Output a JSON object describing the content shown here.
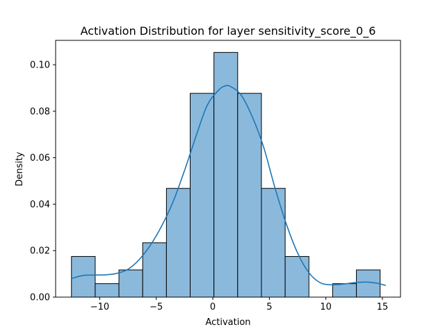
{
  "chart_data": {
    "type": "bar",
    "title": "Activation Distribution for layer sensitivity_score_0_6",
    "xlabel": "Activation",
    "ylabel": "Density",
    "xlim": [
      -13.9,
      16.6
    ],
    "ylim": [
      0,
      0.1105
    ],
    "xticks": [
      -10,
      -5,
      0,
      5,
      10,
      15
    ],
    "xtick_labels": [
      "−10",
      "−5",
      "0",
      "5",
      "10",
      "15"
    ],
    "yticks": [
      0.0,
      0.02,
      0.04,
      0.06,
      0.08,
      0.1
    ],
    "ytick_labels": [
      "0.00",
      "0.02",
      "0.04",
      "0.06",
      "0.08",
      "0.10"
    ],
    "grid": false,
    "bins": [
      {
        "x0": -12.5,
        "x1": -10.4,
        "density": 0.0175
      },
      {
        "x0": -10.4,
        "x1": -8.3,
        "density": 0.0058
      },
      {
        "x0": -8.3,
        "x1": -6.2,
        "density": 0.0117
      },
      {
        "x0": -6.2,
        "x1": -4.1,
        "density": 0.0234
      },
      {
        "x0": -4.1,
        "x1": -2.0,
        "density": 0.0468
      },
      {
        "x0": -2.0,
        "x1": 0.1,
        "density": 0.0877
      },
      {
        "x0": 0.1,
        "x1": 2.2,
        "density": 0.1053
      },
      {
        "x0": 2.2,
        "x1": 4.3,
        "density": 0.0877
      },
      {
        "x0": 4.3,
        "x1": 6.4,
        "density": 0.0468
      },
      {
        "x0": 6.4,
        "x1": 8.5,
        "density": 0.0175
      },
      {
        "x0": 8.5,
        "x1": 10.6,
        "density": 0.0
      },
      {
        "x0": 10.6,
        "x1": 12.7,
        "density": 0.0058
      },
      {
        "x0": 12.7,
        "x1": 14.8,
        "density": 0.0117
      }
    ],
    "kde": {
      "x": [
        -12.5,
        -11.5,
        -10.5,
        -9.5,
        -8.5,
        -7.5,
        -6.5,
        -5.5,
        -4.5,
        -3.5,
        -2.5,
        -1.5,
        -0.5,
        0.5,
        1.0,
        1.5,
        2.5,
        3.5,
        4.5,
        5.5,
        6.5,
        7.5,
        8.5,
        9.5,
        10.5,
        11.5,
        12.5,
        13.5,
        14.5,
        15.3
      ],
      "y": [
        0.008,
        0.0093,
        0.0095,
        0.0096,
        0.0102,
        0.012,
        0.0162,
        0.0225,
        0.0308,
        0.0412,
        0.0545,
        0.069,
        0.0825,
        0.089,
        0.0907,
        0.0908,
        0.087,
        0.0775,
        0.0645,
        0.047,
        0.0315,
        0.019,
        0.0105,
        0.0062,
        0.0053,
        0.0056,
        0.0062,
        0.0065,
        0.006,
        0.005
      ]
    },
    "colors": {
      "bar_fill": "#8bb9dc",
      "bar_edge": "#000000",
      "kde_line": "#1f77b4"
    }
  }
}
